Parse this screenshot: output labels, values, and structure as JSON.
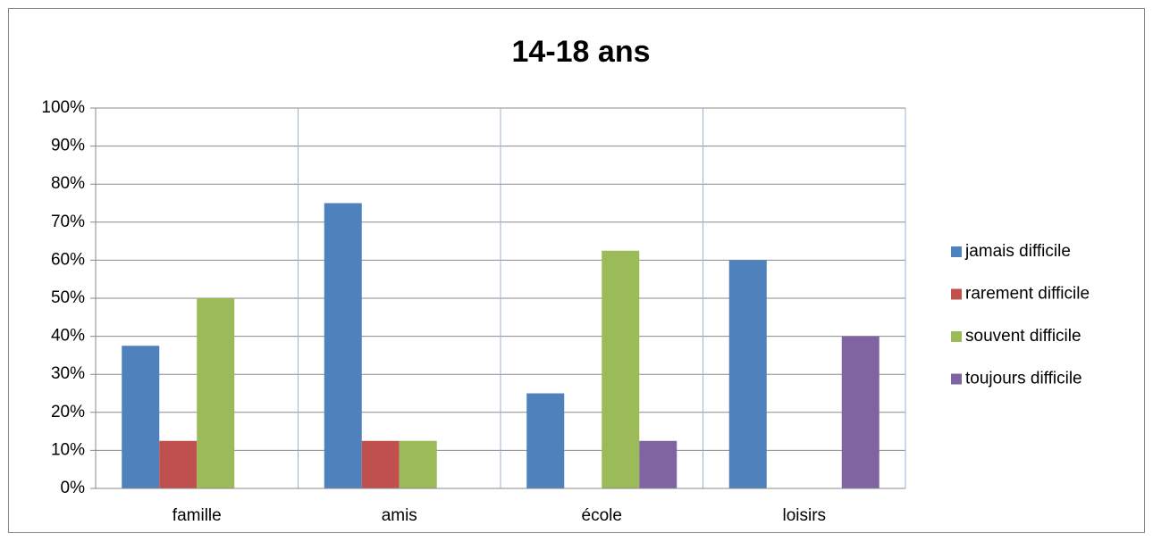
{
  "chart_data": {
    "type": "bar",
    "title": "14-18 ans",
    "categories": [
      "famille",
      "amis",
      "école",
      "loisirs"
    ],
    "series": [
      {
        "name": "jamais difficile",
        "color": "#4f81bd",
        "values": [
          37.5,
          75,
          25,
          60
        ]
      },
      {
        "name": "rarement difficile",
        "color": "#c0504d",
        "values": [
          12.5,
          12.5,
          0,
          0
        ]
      },
      {
        "name": "souvent difficile",
        "color": "#9bbb59",
        "values": [
          50,
          12.5,
          62.5,
          0
        ]
      },
      {
        "name": "toujours difficile",
        "color": "#8064a2",
        "values": [
          0,
          0,
          12.5,
          40
        ]
      }
    ],
    "ylim": [
      0,
      100
    ],
    "yticks": [
      {
        "value": 0,
        "label": "0%"
      },
      {
        "value": 10,
        "label": "10%"
      },
      {
        "value": 20,
        "label": "20%"
      },
      {
        "value": 30,
        "label": "30%"
      },
      {
        "value": 40,
        "label": "40%"
      },
      {
        "value": 50,
        "label": "50%"
      },
      {
        "value": 60,
        "label": "60%"
      },
      {
        "value": 70,
        "label": "70%"
      },
      {
        "value": 80,
        "label": "80%"
      },
      {
        "value": 90,
        "label": "90%"
      },
      {
        "value": 100,
        "label": "100%"
      }
    ],
    "grid": true,
    "legend": "right"
  }
}
